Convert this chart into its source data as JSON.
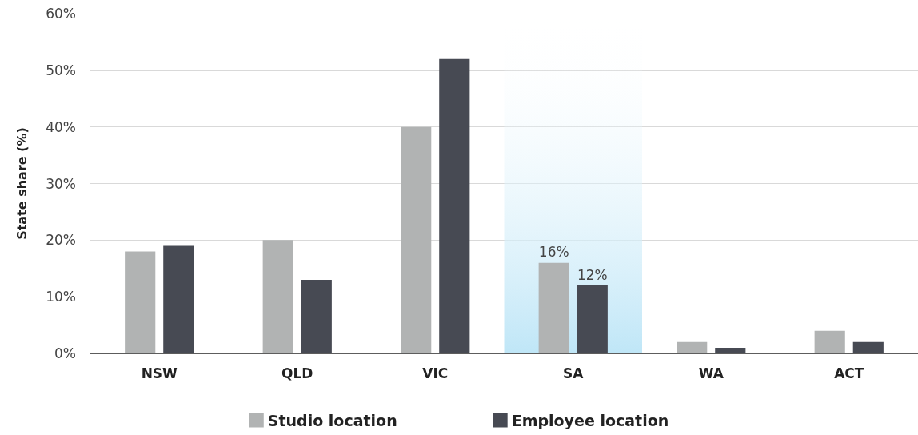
{
  "chart_data": {
    "type": "bar",
    "ylabel": "State share (%)",
    "categories": [
      "NSW",
      "QLD",
      "VIC",
      "SA",
      "WA",
      "ACT"
    ],
    "series": [
      {
        "name": "Studio location",
        "color": "#b1b3b3",
        "values": [
          18,
          20,
          40,
          16,
          2,
          4
        ],
        "value_labels": [
          null,
          null,
          null,
          "16%",
          null,
          null
        ]
      },
      {
        "name": "Employee location",
        "color": "#474a53",
        "values": [
          19,
          13,
          52,
          12,
          1,
          2
        ],
        "value_labels": [
          null,
          null,
          null,
          "12%",
          null,
          null
        ]
      }
    ],
    "ylim": [
      0,
      60
    ],
    "yticks": [
      {
        "value": 0,
        "label": "0%"
      },
      {
        "value": 10,
        "label": "10%"
      },
      {
        "value": 20,
        "label": "20%"
      },
      {
        "value": 30,
        "label": "30%"
      },
      {
        "value": 40,
        "label": "40%"
      },
      {
        "value": 50,
        "label": "50%"
      },
      {
        "value": 60,
        "label": "60%"
      }
    ],
    "bands": [
      {
        "axis": "x",
        "from": "SA",
        "to": "SA",
        "color": "#bfe6f7"
      }
    ],
    "grid": "y",
    "legend": "bottom"
  }
}
